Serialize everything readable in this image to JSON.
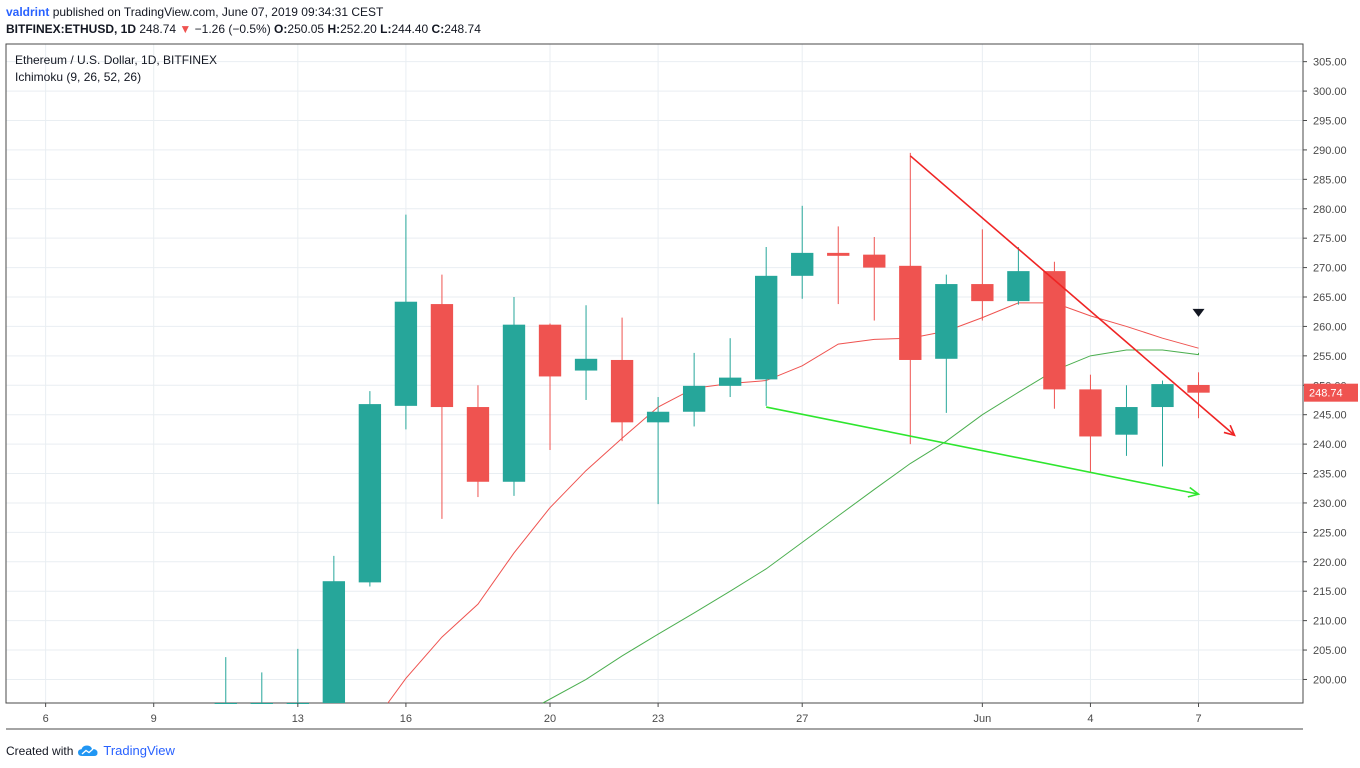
{
  "header": {
    "author": "valdrint",
    "published_text": "published on TradingView.com, June 07, 2019 09:34:31 CEST",
    "symbol": "BITFINEX:ETHUSD, 1D",
    "last": "248.74",
    "change": "−1.26 (−0.5%)",
    "o_label": "O:",
    "o_value": "250.05",
    "h_label": "H:",
    "h_value": "252.20",
    "l_label": "L:",
    "l_value": "244.40",
    "c_label": "C:",
    "c_value": "248.74"
  },
  "footer": {
    "created_with": "Created with",
    "brand": "TradingView",
    "brand_icon": "tradingview-cloud-icon"
  },
  "colors": {
    "up": "#26a69a",
    "down": "#ef5350",
    "conversion": "#ef5350",
    "base": "#4caf50",
    "grid": "#e9eef2",
    "price_tag": "#ef5350"
  },
  "chart_data": {
    "type": "candlestick",
    "title": "Ethereum / U.S. Dollar, 1D, BITFINEX",
    "indicator": "Ichimoku (9, 26, 52, 26)",
    "ylim": [
      196,
      308
    ],
    "y_ticks": [
      200,
      205,
      210,
      215,
      220,
      225,
      230,
      235,
      240,
      245,
      250,
      255,
      260,
      265,
      270,
      275,
      280,
      285,
      290,
      295,
      300,
      305
    ],
    "x_ticks": [
      {
        "day": 0,
        "label": "6"
      },
      {
        "day": 3,
        "label": "9"
      },
      {
        "day": 7,
        "label": "13"
      },
      {
        "day": 10,
        "label": "16"
      },
      {
        "day": 14,
        "label": "20"
      },
      {
        "day": 17,
        "label": "23"
      },
      {
        "day": 21,
        "label": "27"
      },
      {
        "day": 26,
        "label": "Jun"
      },
      {
        "day": 29,
        "label": "4"
      },
      {
        "day": 32,
        "label": "7"
      }
    ],
    "xlim": [
      -1.1,
      34.9
    ],
    "last_price": 248.74,
    "last_price_label": "248.74",
    "candles": [
      {
        "day": 5,
        "o": 196,
        "h": 203.8,
        "l": 196,
        "c": 196
      },
      {
        "day": 6,
        "o": 196,
        "h": 201.2,
        "l": 196,
        "c": 196
      },
      {
        "day": 7,
        "o": 196,
        "h": 205.2,
        "l": 196,
        "c": 196
      },
      {
        "day": 8,
        "o": 196,
        "h": 221.0,
        "l": 196,
        "c": 216.7
      },
      {
        "day": 9,
        "o": 216.5,
        "h": 249.0,
        "l": 215.8,
        "c": 246.8
      },
      {
        "day": 10,
        "o": 246.5,
        "h": 279.0,
        "l": 242.5,
        "c": 264.2
      },
      {
        "day": 11,
        "o": 263.8,
        "h": 268.8,
        "l": 227.3,
        "c": 246.3
      },
      {
        "day": 12,
        "o": 246.3,
        "h": 250.0,
        "l": 231.0,
        "c": 233.6
      },
      {
        "day": 13,
        "o": 233.6,
        "h": 265.0,
        "l": 231.2,
        "c": 260.3
      },
      {
        "day": 14,
        "o": 260.3,
        "h": 260.5,
        "l": 239.0,
        "c": 251.5
      },
      {
        "day": 15,
        "o": 252.5,
        "h": 263.6,
        "l": 247.5,
        "c": 254.5
      },
      {
        "day": 16,
        "o": 254.3,
        "h": 261.5,
        "l": 240.5,
        "c": 243.7
      },
      {
        "day": 17,
        "o": 243.7,
        "h": 248.0,
        "l": 229.8,
        "c": 245.5
      },
      {
        "day": 18,
        "o": 245.5,
        "h": 255.5,
        "l": 243.0,
        "c": 249.9
      },
      {
        "day": 19,
        "o": 249.9,
        "h": 258.0,
        "l": 248.0,
        "c": 251.3
      },
      {
        "day": 20,
        "o": 251.0,
        "h": 273.5,
        "l": 246.5,
        "c": 268.6
      },
      {
        "day": 21,
        "o": 268.6,
        "h": 280.5,
        "l": 264.7,
        "c": 272.5
      },
      {
        "day": 22,
        "o": 272.5,
        "h": 277.0,
        "l": 263.8,
        "c": 272.0
      },
      {
        "day": 23,
        "o": 272.2,
        "h": 275.2,
        "l": 261.0,
        "c": 270.0
      },
      {
        "day": 24,
        "o": 270.3,
        "h": 289.5,
        "l": 240.0,
        "c": 254.3
      },
      {
        "day": 25,
        "o": 254.5,
        "h": 268.8,
        "l": 245.3,
        "c": 267.2
      },
      {
        "day": 26,
        "o": 267.2,
        "h": 276.5,
        "l": 261.0,
        "c": 264.3
      },
      {
        "day": 27,
        "o": 264.3,
        "h": 273.5,
        "l": 263.7,
        "c": 269.4
      },
      {
        "day": 28,
        "o": 269.4,
        "h": 271.0,
        "l": 246.0,
        "c": 249.3
      },
      {
        "day": 29,
        "o": 249.3,
        "h": 251.8,
        "l": 235.2,
        "c": 241.3
      },
      {
        "day": 30,
        "o": 241.6,
        "h": 250.0,
        "l": 238.0,
        "c": 246.3
      },
      {
        "day": 31,
        "o": 246.3,
        "h": 250.8,
        "l": 236.2,
        "c": 250.2
      },
      {
        "day": 32,
        "o": 250.05,
        "h": 252.2,
        "l": 244.4,
        "c": 248.74
      }
    ],
    "conversion_line": [
      [
        9.5,
        196
      ],
      [
        10,
        200.2
      ],
      [
        11,
        207.2
      ],
      [
        12,
        212.8
      ],
      [
        13,
        221.5
      ],
      [
        14,
        229.2
      ],
      [
        15,
        235.5
      ],
      [
        16,
        241.0
      ],
      [
        17,
        246.3
      ],
      [
        18,
        249.5
      ],
      [
        19,
        250.3
      ],
      [
        20,
        250.8
      ],
      [
        21,
        253.3
      ],
      [
        22,
        257.0
      ],
      [
        23,
        257.8
      ],
      [
        24,
        258.0
      ],
      [
        25,
        259.2
      ],
      [
        26,
        261.5
      ],
      [
        27,
        264.0
      ],
      [
        28,
        264.0
      ],
      [
        29,
        261.8
      ],
      [
        30,
        260.0
      ],
      [
        31,
        258.0
      ],
      [
        32,
        256.3
      ]
    ],
    "base_line": [
      [
        13.8,
        196
      ],
      [
        15,
        200.0
      ],
      [
        16,
        204.0
      ],
      [
        17,
        207.7
      ],
      [
        18,
        211.3
      ],
      [
        19,
        215.0
      ],
      [
        20,
        218.8
      ],
      [
        21,
        223.3
      ],
      [
        22,
        227.8
      ],
      [
        23,
        232.3
      ],
      [
        24,
        236.7
      ],
      [
        25,
        240.5
      ],
      [
        26,
        245.0
      ],
      [
        27,
        248.8
      ],
      [
        28,
        252.5
      ],
      [
        29,
        255.0
      ],
      [
        30,
        256.0
      ],
      [
        31,
        256.0
      ],
      [
        32,
        255.2
      ],
      [
        32.0,
        255.5
      ]
    ],
    "annotations": [
      {
        "type": "arrow",
        "color": "#ef2424",
        "from": [
          24.0,
          289.0
        ],
        "to": [
          33.0,
          241.5
        ]
      },
      {
        "type": "arrow",
        "color": "#2ee62e",
        "from": [
          20.0,
          246.3
        ],
        "to": [
          32.0,
          231.5
        ]
      },
      {
        "type": "marker",
        "shape": "triangle-down",
        "color": "#131722",
        "at": [
          32.0,
          262.3
        ]
      }
    ]
  }
}
